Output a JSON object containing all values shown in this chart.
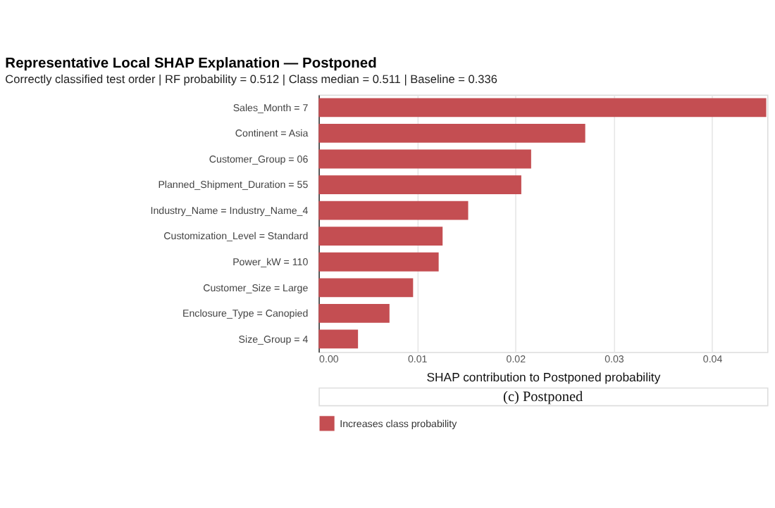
{
  "chart_data": {
    "type": "bar",
    "orientation": "horizontal",
    "title": "Representative Local SHAP Explanation — Postponed",
    "subtitle": "Correctly classified test order | RF probability = 0.512 | Class median = 0.511 | Baseline = 0.336",
    "xlabel": "SHAP contribution to Postponed probability",
    "categories": [
      "Sales_Month = 7",
      "Continent = Asia",
      "Customer_Group = 06",
      "Planned_Shipment_Duration = 55",
      "Industry_Name = Industry_Name_4",
      "Customization_Level = Standard",
      "Power_kW = 110",
      "Customer_Size = Large",
      "Enclosure_Type = Canopied",
      "Size_Group = 4"
    ],
    "series": [
      {
        "name": "Increases class probability",
        "color": "#c44e52",
        "values": [
          0.0455,
          0.0271,
          0.0216,
          0.0206,
          0.0152,
          0.0126,
          0.0122,
          0.0096,
          0.0072,
          0.004
        ]
      }
    ],
    "xlim": [
      0,
      0.0456
    ],
    "xticks": [
      {
        "value": 0,
        "label": "0.00"
      },
      {
        "value": 0.01,
        "label": "0.01"
      },
      {
        "value": 0.02,
        "label": "0.02"
      },
      {
        "value": 0.03,
        "label": "0.03"
      },
      {
        "value": 0.04,
        "label": "0.04"
      }
    ],
    "grid": "x",
    "legend": "bottom",
    "annotations": [
      "(c) Postponed"
    ]
  }
}
